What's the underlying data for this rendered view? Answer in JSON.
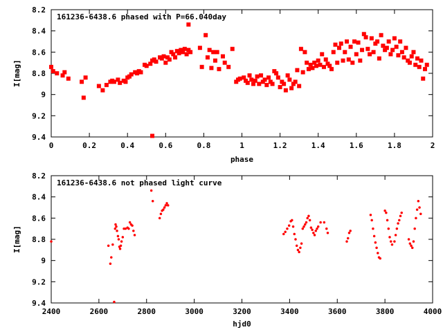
{
  "chart_data": [
    {
      "type": "scatter",
      "title": "161236-6438.6 phased with P=66.040day",
      "xlabel": "phase",
      "ylabel": "I[mag]",
      "xlim": [
        0,
        2
      ],
      "ylim": [
        9.4,
        8.2
      ],
      "y_inverted": true,
      "grid": false,
      "marker": "filled-square",
      "color": "#ff0000",
      "x_ticks": [
        "0",
        "0.2",
        "0.4",
        "0.6",
        "0.8",
        "1",
        "1.2",
        "1.4",
        "1.6",
        "1.8",
        "2"
      ],
      "y_ticks": [
        "8.2",
        "8.4",
        "8.6",
        "8.8",
        "9",
        "9.2",
        "9.4"
      ],
      "series": [
        {
          "points": [
            [
              0.0,
              8.74
            ],
            [
              0.01,
              8.78
            ],
            [
              0.03,
              8.8
            ],
            [
              0.06,
              8.82
            ],
            [
              0.07,
              8.79
            ],
            [
              0.09,
              8.85
            ],
            [
              0.16,
              8.88
            ],
            [
              0.17,
              9.03
            ],
            [
              0.18,
              8.84
            ],
            [
              0.25,
              8.92
            ],
            [
              0.27,
              8.96
            ],
            [
              0.29,
              8.91
            ],
            [
              0.31,
              8.88
            ],
            [
              0.32,
              8.87
            ],
            [
              0.33,
              8.88
            ],
            [
              0.35,
              8.86
            ],
            [
              0.36,
              8.89
            ],
            [
              0.38,
              8.87
            ],
            [
              0.39,
              8.88
            ],
            [
              0.4,
              8.84
            ],
            [
              0.41,
              8.83
            ],
            [
              0.42,
              8.81
            ],
            [
              0.44,
              8.79
            ],
            [
              0.45,
              8.8
            ],
            [
              0.46,
              8.78
            ],
            [
              0.47,
              8.79
            ],
            [
              0.49,
              8.72
            ],
            [
              0.5,
              8.73
            ],
            [
              0.52,
              8.71
            ],
            [
              0.53,
              8.68
            ],
            [
              0.54,
              8.67
            ],
            [
              0.55,
              8.69
            ],
            [
              0.57,
              8.65
            ],
            [
              0.58,
              8.66
            ],
            [
              0.59,
              8.64
            ],
            [
              0.6,
              8.7
            ],
            [
              0.61,
              8.65
            ],
            [
              0.62,
              8.67
            ],
            [
              0.63,
              8.6
            ],
            [
              0.64,
              8.62
            ],
            [
              0.65,
              8.65
            ],
            [
              0.66,
              8.59
            ],
            [
              0.67,
              8.61
            ],
            [
              0.68,
              8.58
            ],
            [
              0.69,
              8.6
            ],
            [
              0.7,
              8.57
            ],
            [
              0.71,
              8.62
            ],
            [
              0.72,
              8.58
            ],
            [
              0.73,
              8.6
            ],
            [
              0.53,
              9.39
            ],
            [
              0.72,
              8.34
            ],
            [
              0.78,
              8.56
            ],
            [
              0.79,
              8.74
            ],
            [
              0.81,
              8.44
            ],
            [
              0.82,
              8.65
            ],
            [
              0.83,
              8.58
            ],
            [
              0.84,
              8.75
            ],
            [
              0.85,
              8.6
            ],
            [
              0.86,
              8.68
            ],
            [
              0.87,
              8.6
            ],
            [
              0.88,
              8.76
            ],
            [
              0.9,
              8.64
            ],
            [
              0.91,
              8.7
            ],
            [
              0.93,
              8.74
            ],
            [
              0.95,
              8.57
            ],
            [
              0.97,
              8.88
            ],
            [
              0.98,
              8.86
            ],
            [
              0.99,
              8.85
            ],
            [
              1.01,
              8.84
            ],
            [
              1.02,
              8.87
            ],
            [
              1.03,
              8.89
            ],
            [
              1.04,
              8.82
            ],
            [
              1.05,
              8.86
            ],
            [
              1.06,
              8.9
            ],
            [
              1.07,
              8.87
            ],
            [
              1.08,
              8.83
            ],
            [
              1.09,
              8.9
            ],
            [
              1.1,
              8.82
            ],
            [
              1.11,
              8.88
            ],
            [
              1.12,
              8.86
            ],
            [
              1.13,
              8.91
            ],
            [
              1.14,
              8.84
            ],
            [
              1.15,
              8.88
            ],
            [
              1.16,
              8.9
            ],
            [
              1.17,
              8.78
            ],
            [
              1.18,
              8.8
            ],
            [
              1.19,
              8.84
            ],
            [
              1.2,
              8.93
            ],
            [
              1.21,
              8.88
            ],
            [
              1.22,
              8.9
            ],
            [
              1.23,
              8.96
            ],
            [
              1.24,
              8.82
            ],
            [
              1.25,
              8.86
            ],
            [
              1.26,
              8.94
            ],
            [
              1.27,
              8.9
            ],
            [
              1.28,
              8.88
            ],
            [
              1.29,
              8.77
            ],
            [
              1.3,
              8.92
            ],
            [
              1.31,
              8.57
            ],
            [
              1.32,
              8.79
            ],
            [
              1.33,
              8.6
            ],
            [
              1.34,
              8.7
            ],
            [
              1.35,
              8.76
            ],
            [
              1.36,
              8.72
            ],
            [
              1.37,
              8.75
            ],
            [
              1.38,
              8.7
            ],
            [
              1.39,
              8.73
            ],
            [
              1.4,
              8.68
            ],
            [
              1.41,
              8.72
            ],
            [
              1.42,
              8.62
            ],
            [
              1.43,
              8.74
            ],
            [
              1.44,
              8.67
            ],
            [
              1.45,
              8.71
            ],
            [
              1.46,
              8.73
            ],
            [
              1.47,
              8.76
            ],
            [
              1.48,
              8.6
            ],
            [
              1.49,
              8.53
            ],
            [
              1.5,
              8.7
            ],
            [
              1.51,
              8.56
            ],
            [
              1.52,
              8.52
            ],
            [
              1.53,
              8.68
            ],
            [
              1.54,
              8.6
            ],
            [
              1.55,
              8.5
            ],
            [
              1.56,
              8.67
            ],
            [
              1.57,
              8.55
            ],
            [
              1.58,
              8.7
            ],
            [
              1.59,
              8.5
            ],
            [
              1.6,
              8.62
            ],
            [
              1.61,
              8.51
            ],
            [
              1.62,
              8.68
            ],
            [
              1.63,
              8.58
            ],
            [
              1.64,
              8.43
            ],
            [
              1.65,
              8.46
            ],
            [
              1.66,
              8.57
            ],
            [
              1.67,
              8.62
            ],
            [
              1.68,
              8.47
            ],
            [
              1.69,
              8.6
            ],
            [
              1.7,
              8.52
            ],
            [
              1.71,
              8.5
            ],
            [
              1.72,
              8.66
            ],
            [
              1.73,
              8.44
            ],
            [
              1.74,
              8.54
            ],
            [
              1.75,
              8.58
            ],
            [
              1.76,
              8.56
            ],
            [
              1.77,
              8.5
            ],
            [
              1.78,
              8.62
            ],
            [
              1.79,
              8.58
            ],
            [
              1.8,
              8.47
            ],
            [
              1.81,
              8.55
            ],
            [
              1.82,
              8.63
            ],
            [
              1.83,
              8.5
            ],
            [
              1.84,
              8.6
            ],
            [
              1.85,
              8.65
            ],
            [
              1.86,
              8.56
            ],
            [
              1.87,
              8.68
            ],
            [
              1.88,
              8.7
            ],
            [
              1.89,
              8.64
            ],
            [
              1.9,
              8.6
            ],
            [
              1.91,
              8.72
            ],
            [
              1.92,
              8.66
            ],
            [
              1.93,
              8.74
            ],
            [
              1.94,
              8.68
            ],
            [
              1.95,
              8.85
            ],
            [
              1.96,
              8.76
            ],
            [
              1.97,
              8.72
            ]
          ]
        }
      ]
    },
    {
      "type": "scatter",
      "title": "161236-6438.6 not phased light curve",
      "xlabel": "hjd0",
      "ylabel": "I[mag]",
      "xlim": [
        2400,
        4000
      ],
      "ylim": [
        9.4,
        8.2
      ],
      "y_inverted": true,
      "grid": false,
      "marker": "small-dot",
      "color": "#ff0000",
      "x_ticks": [
        "2400",
        "2600",
        "2800",
        "3000",
        "3200",
        "3400",
        "3600",
        "3800",
        "4000"
      ],
      "y_ticks": [
        "8.2",
        "8.4",
        "8.6",
        "8.8",
        "9",
        "9.2",
        "9.4"
      ],
      "series": [
        {
          "points": [
            [
              2400,
              8.82
            ],
            [
              2640,
              8.86
            ],
            [
              2648,
              9.03
            ],
            [
              2652,
              8.97
            ],
            [
              2658,
              8.85
            ],
            [
              2664,
              9.39
            ],
            [
              2668,
              8.7
            ],
            [
              2670,
              8.66
            ],
            [
              2673,
              8.68
            ],
            [
              2676,
              8.72
            ],
            [
              2680,
              8.77
            ],
            [
              2683,
              8.8
            ],
            [
              2686,
              8.87
            ],
            [
              2689,
              8.89
            ],
            [
              2692,
              8.86
            ],
            [
              2695,
              8.82
            ],
            [
              2700,
              8.78
            ],
            [
              2705,
              8.7
            ],
            [
              2712,
              8.7
            ],
            [
              2720,
              8.69
            ],
            [
              2725,
              8.7
            ],
            [
              2730,
              8.64
            ],
            [
              2735,
              8.66
            ],
            [
              2740,
              8.67
            ],
            [
              2745,
              8.72
            ],
            [
              2750,
              8.76
            ],
            [
              2820,
              8.34
            ],
            [
              2826,
              8.44
            ],
            [
              2855,
              8.6
            ],
            [
              2860,
              8.56
            ],
            [
              2865,
              8.53
            ],
            [
              2870,
              8.52
            ],
            [
              2875,
              8.5
            ],
            [
              2880,
              8.48
            ],
            [
              2885,
              8.46
            ],
            [
              2890,
              8.48
            ],
            [
              3375,
              8.75
            ],
            [
              3382,
              8.73
            ],
            [
              3390,
              8.7
            ],
            [
              3398,
              8.67
            ],
            [
              3405,
              8.63
            ],
            [
              3410,
              8.62
            ],
            [
              3415,
              8.68
            ],
            [
              3420,
              8.75
            ],
            [
              3425,
              8.8
            ],
            [
              3430,
              8.86
            ],
            [
              3435,
              8.9
            ],
            [
              3440,
              8.92
            ],
            [
              3445,
              8.88
            ],
            [
              3450,
              8.84
            ],
            [
              3455,
              8.7
            ],
            [
              3460,
              8.68
            ],
            [
              3465,
              8.66
            ],
            [
              3470,
              8.64
            ],
            [
              3475,
              8.6
            ],
            [
              3480,
              8.58
            ],
            [
              3485,
              8.62
            ],
            [
              3490,
              8.69
            ],
            [
              3495,
              8.71
            ],
            [
              3500,
              8.74
            ],
            [
              3505,
              8.76
            ],
            [
              3510,
              8.72
            ],
            [
              3515,
              8.7
            ],
            [
              3520,
              8.68
            ],
            [
              3530,
              8.64
            ],
            [
              3545,
              8.64
            ],
            [
              3555,
              8.7
            ],
            [
              3560,
              8.74
            ],
            [
              3640,
              8.82
            ],
            [
              3645,
              8.79
            ],
            [
              3650,
              8.74
            ],
            [
              3655,
              8.72
            ],
            [
              3740,
              8.57
            ],
            [
              3745,
              8.62
            ],
            [
              3750,
              8.7
            ],
            [
              3755,
              8.77
            ],
            [
              3760,
              8.83
            ],
            [
              3765,
              8.88
            ],
            [
              3770,
              8.93
            ],
            [
              3775,
              8.97
            ],
            [
              3780,
              8.98
            ],
            [
              3800,
              8.53
            ],
            [
              3805,
              8.55
            ],
            [
              3810,
              8.62
            ],
            [
              3815,
              8.7
            ],
            [
              3820,
              8.78
            ],
            [
              3825,
              8.82
            ],
            [
              3830,
              8.85
            ],
            [
              3840,
              8.82
            ],
            [
              3845,
              8.76
            ],
            [
              3850,
              8.7
            ],
            [
              3855,
              8.65
            ],
            [
              3860,
              8.62
            ],
            [
              3865,
              8.58
            ],
            [
              3870,
              8.55
            ],
            [
              3900,
              8.8
            ],
            [
              3905,
              8.84
            ],
            [
              3910,
              8.86
            ],
            [
              3915,
              8.88
            ],
            [
              3920,
              8.82
            ],
            [
              3925,
              8.7
            ],
            [
              3930,
              8.6
            ],
            [
              3935,
              8.52
            ],
            [
              3940,
              8.44
            ],
            [
              3945,
              8.5
            ],
            [
              3950,
              8.56
            ]
          ]
        }
      ]
    }
  ]
}
